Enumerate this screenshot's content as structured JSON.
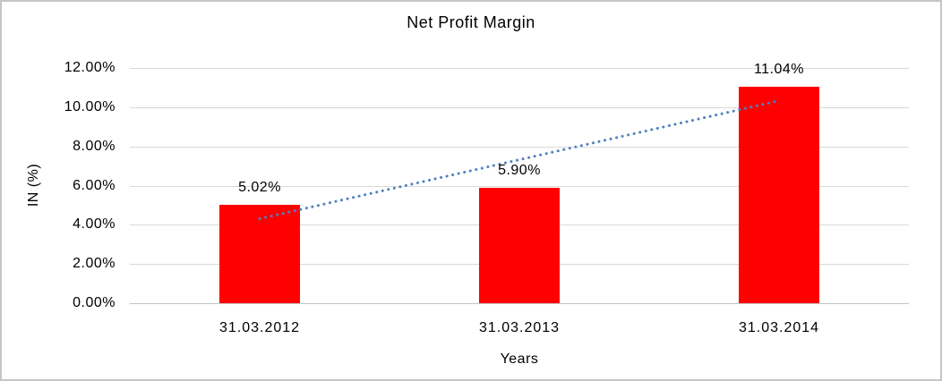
{
  "chart_data": {
    "type": "bar",
    "title": "Net Profit Margin",
    "xlabel": "Years",
    "ylabel": "IN (%)",
    "categories": [
      "31.03.2012",
      "31.03.2013",
      "31.03.2014"
    ],
    "values": [
      5.02,
      5.9,
      11.04
    ],
    "data_labels": [
      "5.02%",
      "5.90%",
      "11.04%"
    ],
    "ylim": [
      0,
      12
    ],
    "ytick_step": 2,
    "ytick_labels": [
      "0.00%",
      "2.00%",
      "4.00%",
      "6.00%",
      "8.00%",
      "10.00%",
      "12.00%"
    ],
    "grid": true,
    "legend_position": "none",
    "colors": {
      "bar": "#ff0000",
      "gridline": "#d9d9d9",
      "trendline": "#4e81bd",
      "text": "#000000",
      "frame_border": "#c6c6c6"
    },
    "trendline": {
      "style": "dotted",
      "shape": "linear",
      "start_value": 4.31,
      "end_value": 10.33,
      "spans": "first-category-center-to-last-category-center"
    }
  }
}
